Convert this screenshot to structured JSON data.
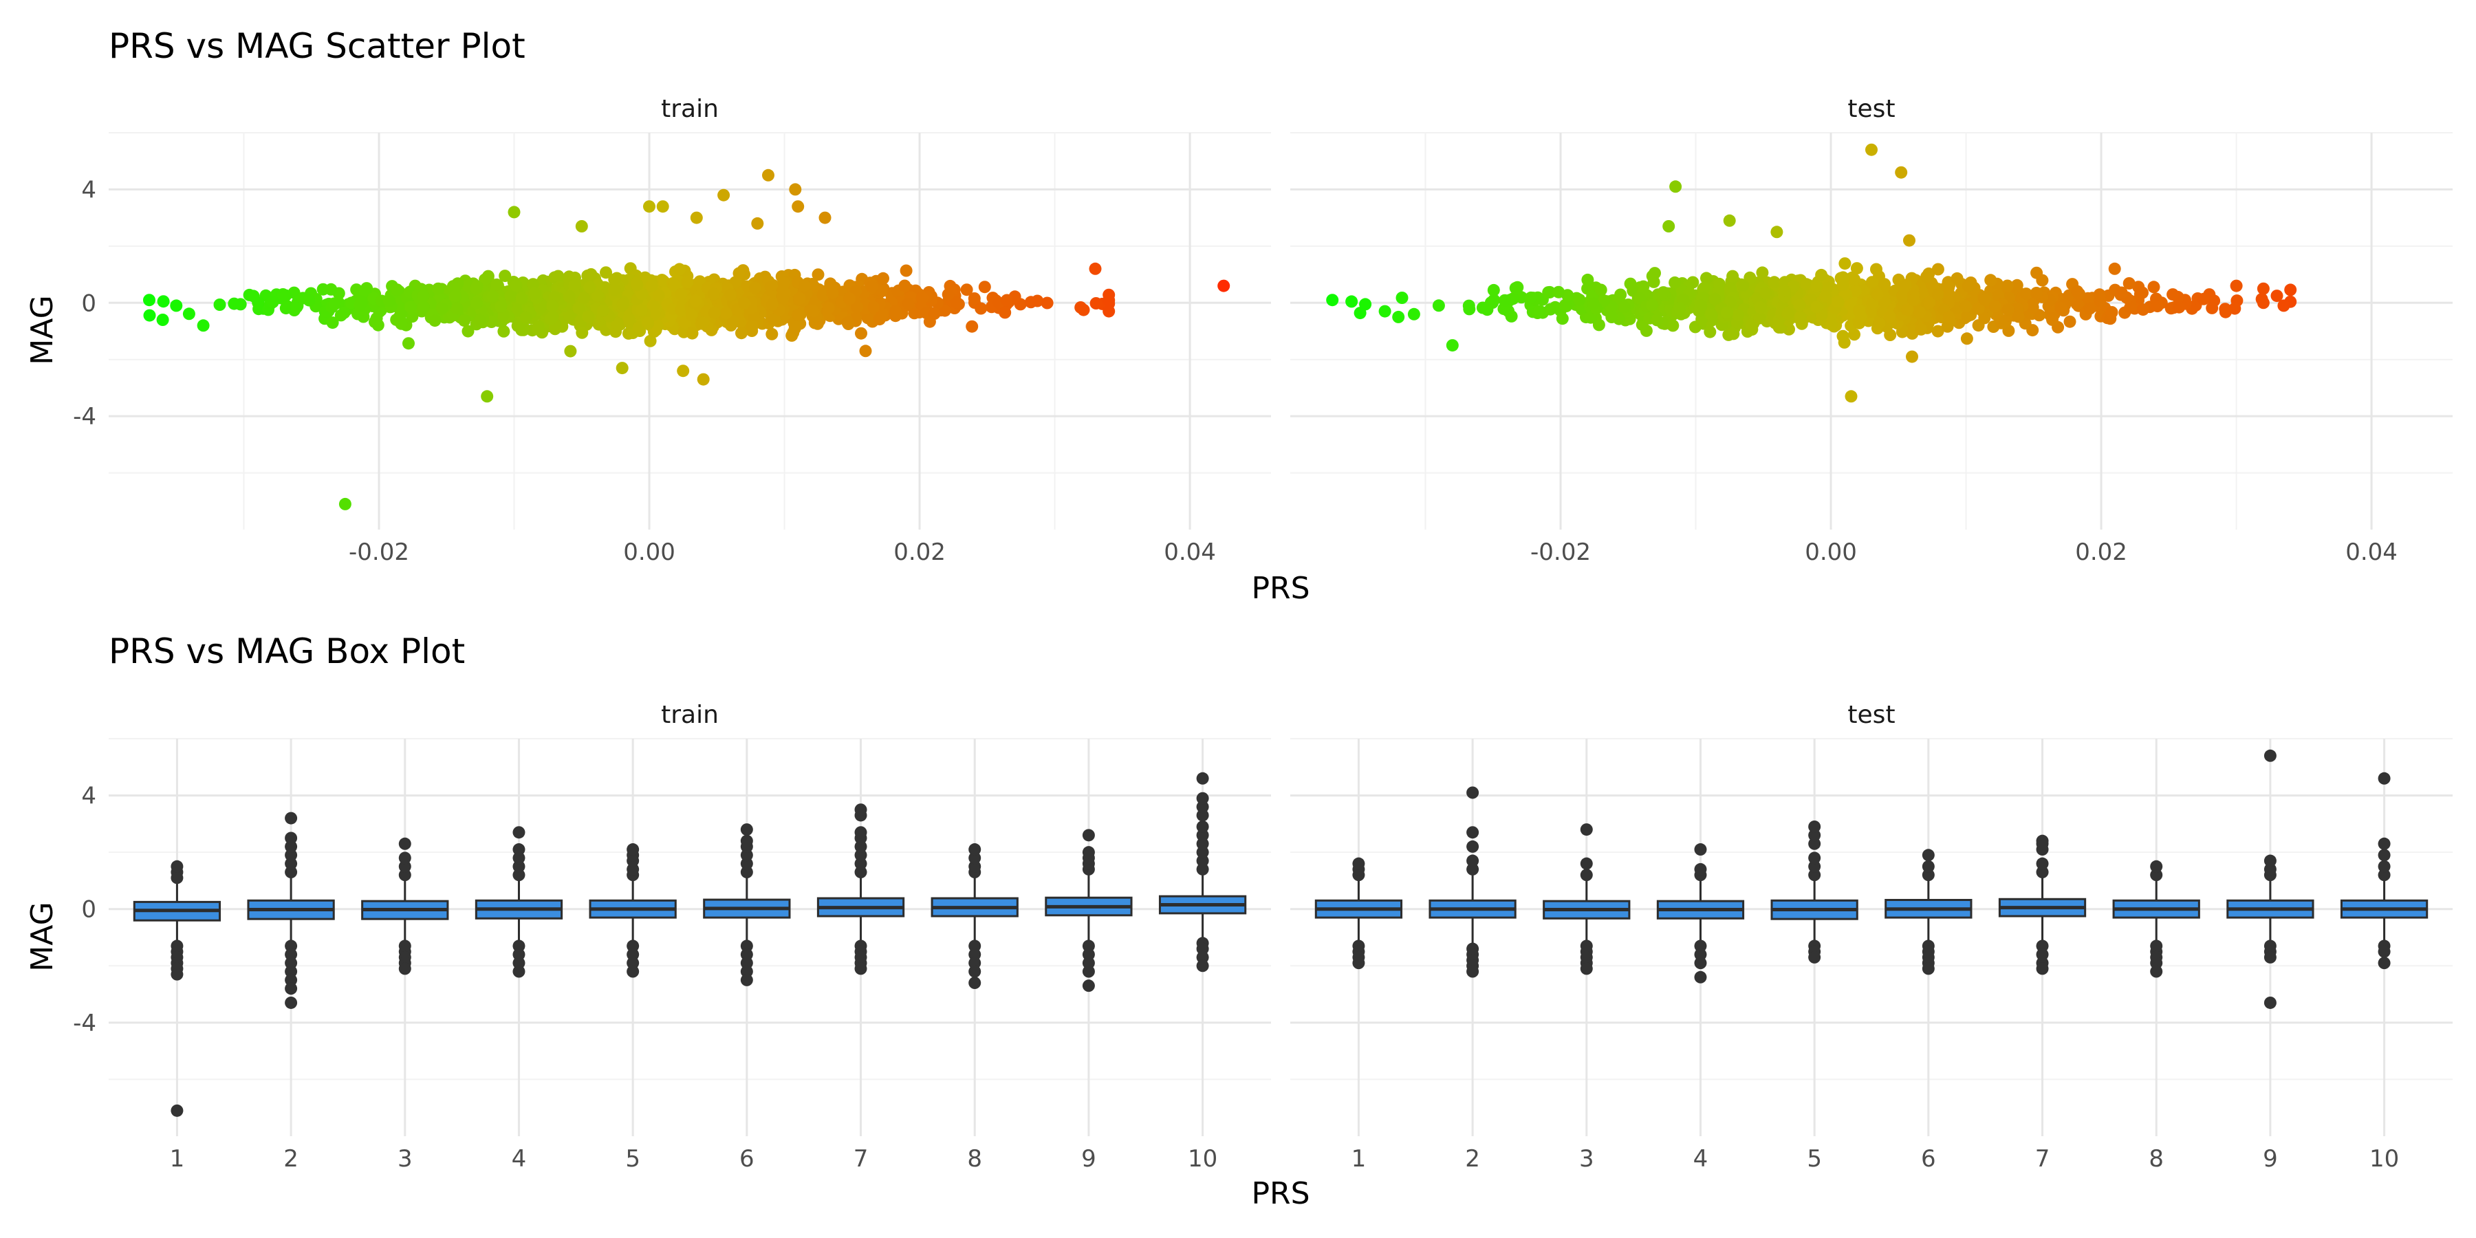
{
  "chart_data": [
    {
      "type": "scatter",
      "title": "PRS vs MAG Scatter Plot",
      "xlabel": "PRS",
      "ylabel": "MAG",
      "xlim": [
        -0.04,
        0.046
      ],
      "ylim": [
        -8.0,
        6.0
      ],
      "x_ticks": [
        "-0.02",
        "0.00",
        "0.02",
        "0.04"
      ],
      "x_tick_values": [
        -0.02,
        0.0,
        0.02,
        0.04
      ],
      "y_ticks": [
        "4",
        "0",
        "-4"
      ],
      "y_tick_values": [
        4,
        0,
        -4
      ],
      "grid": true,
      "color_scale": {
        "low": "#00ff00",
        "mid": "#c8b400",
        "high": "#ff2a00",
        "range": [
          -0.04,
          0.043
        ]
      },
      "facets": [
        {
          "label": "train",
          "n_points": 1700,
          "x_mean": 0.0,
          "x_sd": 0.0115,
          "y_sd": 0.55,
          "points": [
            {
              "x": -0.035,
              "y": -0.1
            },
            {
              "x": -0.036,
              "y": -0.6
            },
            {
              "x": -0.033,
              "y": -0.8
            },
            {
              "x": -0.0225,
              "y": -7.1
            },
            {
              "x": -0.012,
              "y": -3.3
            },
            {
              "x": -0.01,
              "y": 3.2
            },
            {
              "x": -0.005,
              "y": 2.7
            },
            {
              "x": -0.002,
              "y": -2.3
            },
            {
              "x": 0.0,
              "y": 3.4
            },
            {
              "x": 0.001,
              "y": 3.4
            },
            {
              "x": 0.004,
              "y": -2.7
            },
            {
              "x": 0.0025,
              "y": -2.4
            },
            {
              "x": 0.0035,
              "y": 3.0
            },
            {
              "x": 0.0055,
              "y": 3.8
            },
            {
              "x": 0.0088,
              "y": 4.5
            },
            {
              "x": 0.0108,
              "y": 4.0
            },
            {
              "x": 0.011,
              "y": 3.4
            },
            {
              "x": 0.013,
              "y": 3.0
            },
            {
              "x": 0.008,
              "y": 2.8
            },
            {
              "x": 0.016,
              "y": -1.7
            },
            {
              "x": 0.033,
              "y": 1.2
            },
            {
              "x": 0.034,
              "y": -0.3
            },
            {
              "x": 0.0425,
              "y": 0.6
            }
          ]
        },
        {
          "label": "test",
          "n_points": 1100,
          "x_mean": 0.0,
          "x_sd": 0.0115,
          "y_sd": 0.55,
          "points": [
            {
              "x": -0.033,
              "y": -0.3
            },
            {
              "x": -0.032,
              "y": -0.5
            },
            {
              "x": -0.028,
              "y": -1.5
            },
            {
              "x": -0.0115,
              "y": 4.1
            },
            {
              "x": -0.012,
              "y": 2.7
            },
            {
              "x": -0.0075,
              "y": 2.9
            },
            {
              "x": -0.004,
              "y": 2.5
            },
            {
              "x": 0.003,
              "y": 5.4
            },
            {
              "x": 0.0052,
              "y": 4.6
            },
            {
              "x": 0.0015,
              "y": -3.3
            },
            {
              "x": 0.0058,
              "y": 2.2
            },
            {
              "x": 0.006,
              "y": -1.9
            },
            {
              "x": 0.021,
              "y": 1.2
            },
            {
              "x": 0.03,
              "y": 0.6
            },
            {
              "x": 0.032,
              "y": 0.5
            },
            {
              "x": 0.032,
              "y": 0.0
            },
            {
              "x": 0.0335,
              "y": -0.1
            }
          ]
        }
      ]
    },
    {
      "type": "box",
      "title": "PRS vs MAG Box Plot",
      "xlabel": "PRS",
      "ylabel": "MAG",
      "categories": [
        "1",
        "2",
        "3",
        "4",
        "5",
        "6",
        "7",
        "8",
        "9",
        "10"
      ],
      "ylim": [
        -8.0,
        6.0
      ],
      "y_ticks": [
        "4",
        "0",
        "-4"
      ],
      "y_tick_values": [
        4,
        0,
        -4
      ],
      "grid": true,
      "box_fill": "#3b8ee0",
      "box_line": "#2d2d2d",
      "facets": [
        {
          "label": "train",
          "boxes": [
            {
              "q1": -0.4,
              "median": -0.05,
              "q3": 0.25,
              "low": -1.1,
              "high": 1.0,
              "outliers": [
                1.1,
                1.3,
                1.5,
                -1.3,
                -1.5,
                -1.7,
                -1.9,
                -2.1,
                -2.3,
                -7.1
              ]
            },
            {
              "q1": -0.35,
              "median": -0.02,
              "q3": 0.3,
              "low": -1.2,
              "high": 1.1,
              "outliers": [
                1.3,
                1.6,
                1.9,
                2.2,
                2.5,
                3.2,
                -1.3,
                -1.6,
                -1.9,
                -2.2,
                -2.5,
                -2.8,
                -3.3
              ]
            },
            {
              "q1": -0.35,
              "median": -0.02,
              "q3": 0.28,
              "low": -1.2,
              "high": 1.0,
              "outliers": [
                1.2,
                1.5,
                1.8,
                2.3,
                -1.3,
                -1.5,
                -1.7,
                -1.9,
                -2.1
              ]
            },
            {
              "q1": -0.33,
              "median": 0.0,
              "q3": 0.3,
              "low": -1.2,
              "high": 1.1,
              "outliers": [
                1.2,
                1.5,
                1.8,
                2.1,
                2.7,
                -1.3,
                -1.6,
                -1.9,
                -2.2
              ]
            },
            {
              "q1": -0.3,
              "median": 0.0,
              "q3": 0.3,
              "low": -1.2,
              "high": 1.1,
              "outliers": [
                1.2,
                1.4,
                1.7,
                1.9,
                2.1,
                -1.3,
                -1.6,
                -1.9,
                -2.2
              ]
            },
            {
              "q1": -0.3,
              "median": 0.02,
              "q3": 0.33,
              "low": -1.2,
              "high": 1.2,
              "outliers": [
                1.3,
                1.6,
                1.9,
                2.2,
                2.4,
                2.8,
                -1.3,
                -1.6,
                -1.9,
                -2.2,
                -2.5
              ]
            },
            {
              "q1": -0.25,
              "median": 0.05,
              "q3": 0.38,
              "low": -1.1,
              "high": 1.2,
              "outliers": [
                1.3,
                1.6,
                1.9,
                2.2,
                2.5,
                2.7,
                3.3,
                3.5,
                -1.3,
                -1.5,
                -1.7,
                -1.9,
                -2.1
              ]
            },
            {
              "q1": -0.25,
              "median": 0.05,
              "q3": 0.38,
              "low": -1.1,
              "high": 1.2,
              "outliers": [
                1.3,
                1.5,
                1.8,
                2.1,
                -1.3,
                -1.6,
                -1.9,
                -2.2,
                -2.6
              ]
            },
            {
              "q1": -0.22,
              "median": 0.08,
              "q3": 0.4,
              "low": -1.1,
              "high": 1.3,
              "outliers": [
                1.4,
                1.6,
                1.8,
                2.0,
                2.6,
                -1.3,
                -1.6,
                -1.9,
                -2.2,
                -2.7
              ]
            },
            {
              "q1": -0.15,
              "median": 0.15,
              "q3": 0.45,
              "low": -1.0,
              "high": 1.3,
              "outliers": [
                1.4,
                1.7,
                2.0,
                2.3,
                2.6,
                2.9,
                3.3,
                3.6,
                3.9,
                4.6,
                -1.2,
                -1.4,
                -1.7,
                -2.0
              ]
            }
          ]
        },
        {
          "label": "test",
          "boxes": [
            {
              "q1": -0.3,
              "median": 0.0,
              "q3": 0.3,
              "low": -1.2,
              "high": 1.1,
              "outliers": [
                1.2,
                1.4,
                1.6,
                -1.3,
                -1.5,
                -1.7,
                -1.9
              ]
            },
            {
              "q1": -0.3,
              "median": 0.0,
              "q3": 0.3,
              "low": -1.3,
              "high": 1.2,
              "outliers": [
                1.4,
                1.7,
                2.2,
                2.7,
                4.1,
                -1.4,
                -1.6,
                -1.8,
                -2.0,
                -2.2
              ]
            },
            {
              "q1": -0.33,
              "median": -0.02,
              "q3": 0.28,
              "low": -1.3,
              "high": 1.1,
              "outliers": [
                1.2,
                1.6,
                2.8,
                -1.3,
                -1.5,
                -1.7,
                -1.9,
                -2.1
              ]
            },
            {
              "q1": -0.33,
              "median": -0.02,
              "q3": 0.28,
              "low": -1.2,
              "high": 1.1,
              "outliers": [
                1.2,
                1.4,
                2.1,
                -1.3,
                -1.6,
                -1.9,
                -2.4
              ]
            },
            {
              "q1": -0.35,
              "median": -0.02,
              "q3": 0.3,
              "low": -1.2,
              "high": 1.1,
              "outliers": [
                1.2,
                1.5,
                1.8,
                2.3,
                2.6,
                2.9,
                -1.3,
                -1.5,
                -1.7
              ]
            },
            {
              "q1": -0.3,
              "median": 0.0,
              "q3": 0.32,
              "low": -1.2,
              "high": 1.1,
              "outliers": [
                1.2,
                1.5,
                1.9,
                -1.3,
                -1.5,
                -1.7,
                -1.9,
                -2.1
              ]
            },
            {
              "q1": -0.25,
              "median": 0.05,
              "q3": 0.35,
              "low": -1.2,
              "high": 1.2,
              "outliers": [
                1.3,
                1.6,
                2.1,
                2.3,
                2.4,
                -1.3,
                -1.6,
                -1.9,
                -2.1
              ]
            },
            {
              "q1": -0.3,
              "median": 0.0,
              "q3": 0.3,
              "low": -1.2,
              "high": 1.1,
              "outliers": [
                1.2,
                1.5,
                -1.3,
                -1.5,
                -1.7,
                -1.9,
                -2.2
              ]
            },
            {
              "q1": -0.3,
              "median": 0.0,
              "q3": 0.3,
              "low": -1.2,
              "high": 1.1,
              "outliers": [
                1.2,
                1.4,
                1.7,
                5.4,
                -1.3,
                -1.5,
                -1.7,
                -3.3
              ]
            },
            {
              "q1": -0.3,
              "median": 0.0,
              "q3": 0.3,
              "low": -1.2,
              "high": 1.1,
              "outliers": [
                1.2,
                1.5,
                1.9,
                2.3,
                4.6,
                -1.3,
                -1.5,
                -1.9
              ]
            }
          ]
        }
      ]
    }
  ]
}
